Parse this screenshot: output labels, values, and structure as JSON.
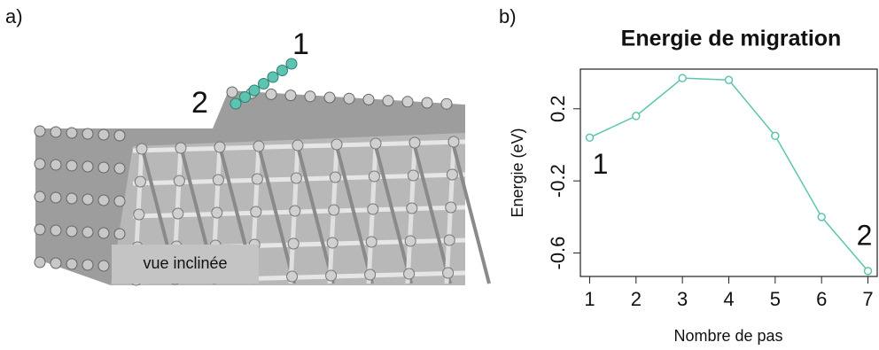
{
  "figure": {
    "panel_labels": [
      "a)",
      "b)"
    ],
    "image_labels": [
      "1",
      "2",
      "vue inclinée"
    ]
  },
  "chart_data": {
    "type": "line",
    "title": "Energie de migration",
    "x_label": "Nombre de pas",
    "y_label": "Energie (eV)",
    "x": [
      1,
      2,
      3,
      4,
      5,
      6,
      7
    ],
    "series": [
      {
        "name": "Energie",
        "color": "#5cc4b0",
        "values": [
          0.04,
          0.16,
          0.37,
          0.36,
          0.05,
          -0.4,
          -0.7
        ]
      }
    ],
    "xlim": [
      0.8,
      7.2
    ],
    "ylim": [
      -0.73,
      0.42
    ],
    "xticks": [
      1,
      2,
      3,
      4,
      5,
      6,
      7
    ],
    "yticks": [
      0.2,
      -0.2,
      -0.6
    ],
    "annotations": [
      "1",
      "2"
    ],
    "marker": "open-circle"
  }
}
